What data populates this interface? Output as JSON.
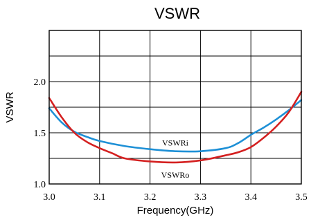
{
  "chart_data": {
    "type": "line",
    "title": "VSWR",
    "xlabel": "Frequency(GHz)",
    "ylabel": "VSWR",
    "xlim": [
      3.0,
      3.5
    ],
    "ylim": [
      1.0,
      2.5
    ],
    "x_ticks": [
      "3.0",
      "3.1",
      "3.2",
      "3.3",
      "3.4",
      "3.5"
    ],
    "y_ticks": [
      "1.0",
      "1.5",
      "2.0"
    ],
    "grid": true,
    "series": [
      {
        "name": "VSWRi",
        "color": "#1e90d6",
        "x": [
          3.0,
          3.025,
          3.05,
          3.075,
          3.1,
          3.15,
          3.2,
          3.25,
          3.3,
          3.35,
          3.375,
          3.4,
          3.425,
          3.45,
          3.475,
          3.5
        ],
        "y": [
          1.74,
          1.6,
          1.51,
          1.46,
          1.42,
          1.37,
          1.34,
          1.32,
          1.32,
          1.35,
          1.4,
          1.48,
          1.55,
          1.63,
          1.72,
          1.82
        ]
      },
      {
        "name": "VSWRo",
        "color": "#d42020",
        "x": [
          3.0,
          3.025,
          3.05,
          3.075,
          3.1,
          3.125,
          3.15,
          3.2,
          3.25,
          3.3,
          3.35,
          3.375,
          3.4,
          3.425,
          3.45,
          3.475,
          3.5
        ],
        "y": [
          1.84,
          1.65,
          1.5,
          1.41,
          1.35,
          1.3,
          1.25,
          1.22,
          1.21,
          1.23,
          1.28,
          1.31,
          1.36,
          1.45,
          1.56,
          1.7,
          1.9
        ]
      }
    ]
  }
}
